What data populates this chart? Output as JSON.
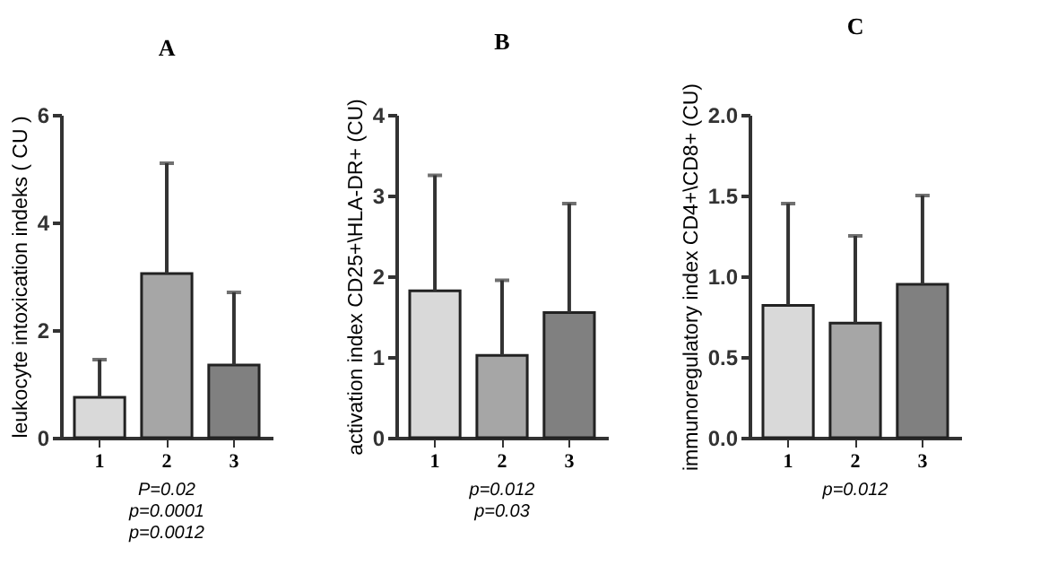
{
  "chart_data": [
    {
      "type": "bar",
      "title": "A",
      "ylabel": "leukocyte intoxication indeks ( CU )",
      "categories": [
        "1",
        "2",
        "3"
      ],
      "values": [
        0.75,
        3.05,
        1.35
      ],
      "colors": [
        "#d9d9d9",
        "#a6a6a6",
        "#808080"
      ],
      "errors": [
        [
          0.75,
          1.45
        ],
        [
          3.05,
          5.1
        ],
        [
          1.35,
          2.7
        ]
      ],
      "ylim": [
        0,
        6
      ],
      "yticks": [
        0,
        2,
        4,
        6
      ],
      "annotations": [
        "P=0.02",
        "p=0.0001",
        "p=0.0012"
      ]
    },
    {
      "type": "bar",
      "title": "B",
      "ylabel": "activation index CD25+\\HLA-DR+ (CU)",
      "categories": [
        "1",
        "2",
        "3"
      ],
      "values": [
        1.82,
        1.02,
        1.55
      ],
      "colors": [
        "#d9d9d9",
        "#a6a6a6",
        "#808080"
      ],
      "errors": [
        [
          1.82,
          3.25
        ],
        [
          1.02,
          1.95
        ],
        [
          1.55,
          2.9
        ]
      ],
      "ylim": [
        0,
        4
      ],
      "yticks": [
        0,
        1,
        2,
        3,
        4
      ],
      "annotations": [
        "p=0.012",
        "p=0.03"
      ]
    },
    {
      "type": "bar",
      "title": "C",
      "ylabel": "immunoregulatory index CD4+\\CD8+ (CU)",
      "categories": [
        "1",
        "2",
        "3"
      ],
      "values": [
        0.82,
        0.71,
        0.95
      ],
      "colors": [
        "#d9d9d9",
        "#a6a6a6",
        "#808080"
      ],
      "errors": [
        [
          0.82,
          1.45
        ],
        [
          0.71,
          1.25
        ],
        [
          0.95,
          1.5
        ]
      ],
      "ylim": [
        0,
        2
      ],
      "yticks": [
        {
          "value": 0,
          "label": "0.0"
        },
        {
          "value": 0.5,
          "label": "0.5"
        },
        {
          "value": 1,
          "label": "1.0"
        },
        {
          "value": 1.5,
          "label": "1.5"
        },
        {
          "value": 2,
          "label": "2.0"
        }
      ],
      "annotations": [
        "p=0.012"
      ]
    }
  ]
}
